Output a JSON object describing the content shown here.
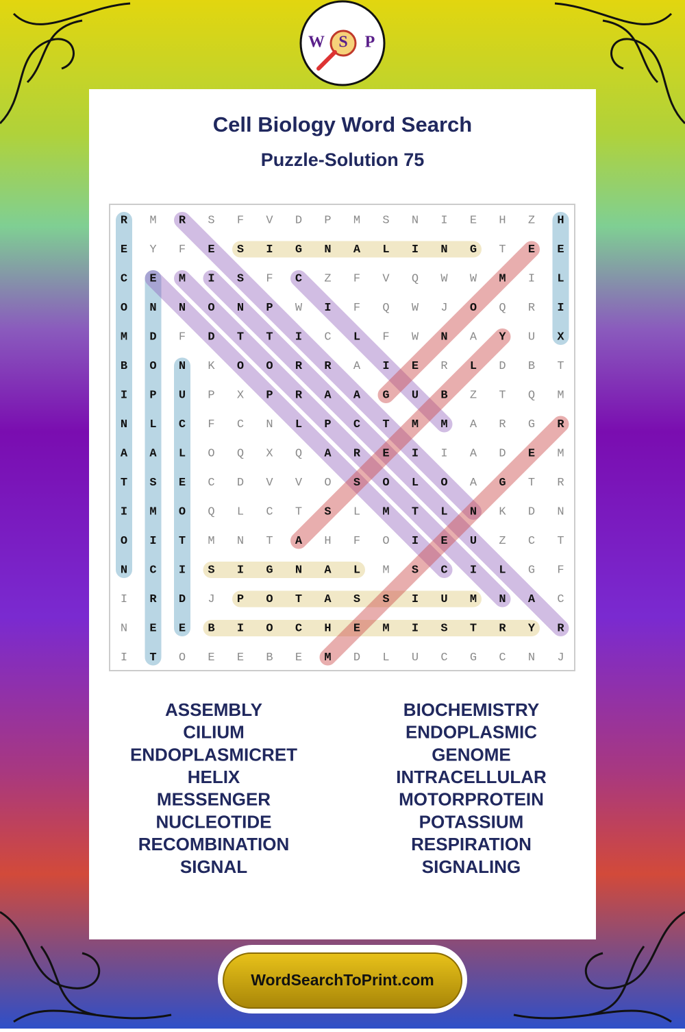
{
  "logo": [
    "W",
    "S",
    "P"
  ],
  "header": {
    "title": "Cell Biology Word Search",
    "subtitle": "Puzzle-Solution 75"
  },
  "grid": {
    "rows": [
      [
        "R",
        "M",
        "R",
        "S",
        "F",
        "V",
        "D",
        "P",
        "M",
        "S",
        "N",
        "I",
        "E",
        "H",
        "Z",
        "H"
      ],
      [
        "E",
        "Y",
        "F",
        "E",
        "S",
        "I",
        "G",
        "N",
        "A",
        "L",
        "I",
        "N",
        "G",
        "T",
        "E",
        "E"
      ],
      [
        "C",
        "E",
        "M",
        "I",
        "S",
        "F",
        "C",
        "Z",
        "F",
        "V",
        "Q",
        "W",
        "W",
        "M",
        "I",
        "L"
      ],
      [
        "O",
        "N",
        "N",
        "O",
        "N",
        "P",
        "W",
        "I",
        "F",
        "Q",
        "W",
        "J",
        "O",
        "Q",
        "R",
        "I"
      ],
      [
        "M",
        "D",
        "F",
        "D",
        "T",
        "T",
        "I",
        "C",
        "L",
        "F",
        "W",
        "N",
        "A",
        "Y",
        "U",
        "X"
      ],
      [
        "B",
        "O",
        "N",
        "K",
        "O",
        "O",
        "R",
        "R",
        "A",
        "I",
        "E",
        "R",
        "L",
        "D",
        "B",
        "T"
      ],
      [
        "I",
        "P",
        "U",
        "P",
        "X",
        "P",
        "R",
        "A",
        "A",
        "G",
        "U",
        "B",
        "Z",
        "T",
        "Q",
        "M"
      ],
      [
        "N",
        "L",
        "C",
        "F",
        "C",
        "N",
        "L",
        "P",
        "C",
        "T",
        "M",
        "M",
        "A",
        "R",
        "G",
        "R"
      ],
      [
        "A",
        "A",
        "L",
        "O",
        "Q",
        "X",
        "Q",
        "A",
        "R",
        "E",
        "I",
        "I",
        "A",
        "D",
        "E",
        "M"
      ],
      [
        "T",
        "S",
        "E",
        "C",
        "D",
        "V",
        "V",
        "O",
        "S",
        "O",
        "L",
        "O",
        "A",
        "G",
        "T",
        "R"
      ],
      [
        "I",
        "M",
        "O",
        "Q",
        "L",
        "C",
        "T",
        "S",
        "L",
        "M",
        "T",
        "L",
        "N",
        "K",
        "D",
        "N"
      ],
      [
        "O",
        "I",
        "T",
        "M",
        "N",
        "T",
        "A",
        "H",
        "F",
        "O",
        "I",
        "E",
        "U",
        "Z",
        "C",
        "T"
      ],
      [
        "N",
        "C",
        "I",
        "S",
        "I",
        "G",
        "N",
        "A",
        "L",
        "M",
        "S",
        "C",
        "I",
        "L",
        "G",
        "F"
      ],
      [
        "I",
        "R",
        "D",
        "J",
        "P",
        "O",
        "T",
        "A",
        "S",
        "S",
        "I",
        "U",
        "M",
        "N",
        "A",
        "C"
      ],
      [
        "N",
        "E",
        "E",
        "B",
        "I",
        "O",
        "C",
        "H",
        "E",
        "M",
        "I",
        "S",
        "T",
        "R",
        "Y",
        "R"
      ],
      [
        "I",
        "T",
        "O",
        "E",
        "E",
        "B",
        "E",
        "M",
        "D",
        "L",
        "U",
        "C",
        "G",
        "C",
        "N",
        "J"
      ]
    ]
  },
  "words": {
    "left": [
      "ASSEMBLY",
      "CILIUM",
      "ENDOPLASMICRET",
      "HELIX",
      "MESSENGER",
      "NUCLEOTIDE",
      "RECOMBINATION",
      "SIGNAL"
    ],
    "right": [
      "BIOCHEMISTRY",
      "ENDOPLASMIC",
      "GENOME",
      "INTRACELLULAR",
      "MOTORPROTEIN",
      "POTASSIUM",
      "RESPIRATION",
      "SIGNALING"
    ]
  },
  "footer": {
    "site": "WordSearchToPrint.com"
  }
}
